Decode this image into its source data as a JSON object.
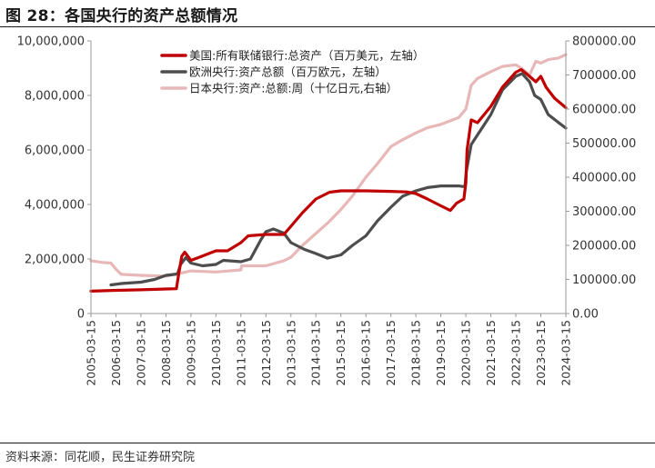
{
  "figure": {
    "title": "图 28：各国央行的资产总额情况",
    "source": "资料来源：同花顺，民生证券研究院"
  },
  "chart_data": {
    "type": "line",
    "y_left": {
      "range": [
        0,
        10000000
      ],
      "ticks": [
        0,
        2000000,
        4000000,
        6000000,
        8000000,
        10000000
      ],
      "tick_labels": [
        "0",
        "2,000,000",
        "4,000,000",
        "6,000,000",
        "8,000,000",
        "10,000,000"
      ]
    },
    "y_right": {
      "range": [
        0,
        800000
      ],
      "ticks": [
        0,
        100000,
        200000,
        300000,
        400000,
        500000,
        600000,
        700000,
        800000
      ],
      "tick_labels": [
        "0.00",
        "100000.00",
        "200000.00",
        "300000.00",
        "400000.00",
        "500000.00",
        "600000.00",
        "700000.00",
        "800000.00"
      ]
    },
    "x_axis": {
      "tick_labels": [
        "2005-03-15",
        "2006-03-15",
        "2007-03-15",
        "2008-03-15",
        "2009-03-15",
        "2010-03-15",
        "2011-03-15",
        "2012-03-15",
        "2013-03-15",
        "2014-03-15",
        "2015-03-15",
        "2016-03-15",
        "2017-03-15",
        "2018-03-15",
        "2019-03-15",
        "2020-03-15",
        "2021-03-15",
        "2022-03-15",
        "2023-03-15",
        "2024-03-15"
      ],
      "range": [
        "2005-03-15",
        "2024-03-15"
      ]
    },
    "legend": {
      "placement": "top-center"
    },
    "grid": false,
    "series": [
      {
        "name": "美国:所有联储银行:总资产（百万美元，左轴）",
        "axis": "left",
        "color": "#c00000",
        "points": [
          [
            "2005-03-15",
            820000
          ],
          [
            "2006-03-15",
            850000
          ],
          [
            "2007-03-15",
            870000
          ],
          [
            "2008-03-15",
            900000
          ],
          [
            "2008-08-15",
            910000
          ],
          [
            "2008-09-20",
            1500000
          ],
          [
            "2008-11-01",
            2100000
          ],
          [
            "2008-12-15",
            2250000
          ],
          [
            "2009-03-15",
            1950000
          ],
          [
            "2009-07-01",
            2050000
          ],
          [
            "2010-03-15",
            2300000
          ],
          [
            "2010-09-01",
            2300000
          ],
          [
            "2011-03-15",
            2600000
          ],
          [
            "2011-06-30",
            2850000
          ],
          [
            "2012-03-15",
            2900000
          ],
          [
            "2012-12-01",
            2900000
          ],
          [
            "2013-03-15",
            3200000
          ],
          [
            "2013-09-01",
            3700000
          ],
          [
            "2014-03-15",
            4200000
          ],
          [
            "2014-10-01",
            4450000
          ],
          [
            "2015-03-15",
            4500000
          ],
          [
            "2016-03-15",
            4500000
          ],
          [
            "2017-03-15",
            4480000
          ],
          [
            "2017-11-01",
            4460000
          ],
          [
            "2018-03-15",
            4400000
          ],
          [
            "2018-09-01",
            4200000
          ],
          [
            "2019-03-15",
            3950000
          ],
          [
            "2019-08-01",
            3780000
          ],
          [
            "2019-11-01",
            4050000
          ],
          [
            "2020-02-15",
            4200000
          ],
          [
            "2020-03-15",
            4800000
          ],
          [
            "2020-04-01",
            6000000
          ],
          [
            "2020-06-01",
            7100000
          ],
          [
            "2020-09-01",
            7000000
          ],
          [
            "2021-03-15",
            7600000
          ],
          [
            "2021-09-01",
            8300000
          ],
          [
            "2022-03-15",
            8850000
          ],
          [
            "2022-06-01",
            8950000
          ],
          [
            "2022-10-01",
            8700000
          ],
          [
            "2023-01-01",
            8500000
          ],
          [
            "2023-03-15",
            8700000
          ],
          [
            "2023-06-01",
            8300000
          ],
          [
            "2023-10-01",
            7900000
          ],
          [
            "2024-03-15",
            7550000
          ]
        ]
      },
      {
        "name": "欧洲央行:资产总额（百万欧元，左轴）",
        "axis": "left",
        "color": "#4d4d4d",
        "points": [
          [
            "2006-01-01",
            1050000
          ],
          [
            "2006-06-01",
            1100000
          ],
          [
            "2007-03-15",
            1150000
          ],
          [
            "2007-10-01",
            1250000
          ],
          [
            "2008-03-15",
            1400000
          ],
          [
            "2008-09-01",
            1450000
          ],
          [
            "2008-10-15",
            1800000
          ],
          [
            "2008-12-31",
            2050000
          ],
          [
            "2009-03-15",
            1850000
          ],
          [
            "2009-09-01",
            1750000
          ],
          [
            "2010-03-15",
            1800000
          ],
          [
            "2010-07-01",
            1950000
          ],
          [
            "2011-03-15",
            1900000
          ],
          [
            "2011-08-01",
            2000000
          ],
          [
            "2011-12-31",
            2700000
          ],
          [
            "2012-03-15",
            3000000
          ],
          [
            "2012-07-01",
            3100000
          ],
          [
            "2012-12-01",
            2950000
          ],
          [
            "2013-03-15",
            2600000
          ],
          [
            "2013-10-01",
            2350000
          ],
          [
            "2014-03-15",
            2200000
          ],
          [
            "2014-09-01",
            2030000
          ],
          [
            "2015-03-15",
            2150000
          ],
          [
            "2015-09-01",
            2500000
          ],
          [
            "2016-03-15",
            2850000
          ],
          [
            "2016-09-01",
            3400000
          ],
          [
            "2017-03-15",
            3900000
          ],
          [
            "2017-09-01",
            4300000
          ],
          [
            "2018-03-15",
            4500000
          ],
          [
            "2018-09-01",
            4620000
          ],
          [
            "2019-03-15",
            4680000
          ],
          [
            "2019-12-01",
            4680000
          ],
          [
            "2020-03-01",
            4650000
          ],
          [
            "2020-03-20",
            5200000
          ],
          [
            "2020-06-01",
            6200000
          ],
          [
            "2021-03-15",
            7300000
          ],
          [
            "2021-09-01",
            8200000
          ],
          [
            "2022-03-15",
            8700000
          ],
          [
            "2022-06-15",
            8800000
          ],
          [
            "2022-10-01",
            8500000
          ],
          [
            "2022-12-15",
            8000000
          ],
          [
            "2023-03-15",
            7850000
          ],
          [
            "2023-07-01",
            7300000
          ],
          [
            "2023-12-01",
            7000000
          ],
          [
            "2024-03-15",
            6800000
          ]
        ]
      },
      {
        "name": "日本央行:资产:总额:周（十亿日元,右轴）",
        "axis": "right",
        "color": "#e8b7b7",
        "points": [
          [
            "2005-03-15",
            155000
          ],
          [
            "2005-09-01",
            150000
          ],
          [
            "2006-01-01",
            148000
          ],
          [
            "2006-03-15",
            130000
          ],
          [
            "2006-06-01",
            115000
          ],
          [
            "2007-03-15",
            112000
          ],
          [
            "2008-03-15",
            110000
          ],
          [
            "2008-10-01",
            118000
          ],
          [
            "2009-03-15",
            125000
          ],
          [
            "2010-03-15",
            122000
          ],
          [
            "2011-03-15",
            128000
          ],
          [
            "2011-03-25",
            140000
          ],
          [
            "2012-03-15",
            140000
          ],
          [
            "2012-12-01",
            155000
          ],
          [
            "2013-03-15",
            165000
          ],
          [
            "2013-09-01",
            200000
          ],
          [
            "2014-03-15",
            235000
          ],
          [
            "2014-09-01",
            265000
          ],
          [
            "2015-03-15",
            305000
          ],
          [
            "2015-09-01",
            345000
          ],
          [
            "2016-03-15",
            400000
          ],
          [
            "2016-09-01",
            440000
          ],
          [
            "2017-03-15",
            490000
          ],
          [
            "2017-09-01",
            510000
          ],
          [
            "2018-03-15",
            530000
          ],
          [
            "2018-09-01",
            545000
          ],
          [
            "2019-03-15",
            555000
          ],
          [
            "2019-12-01",
            575000
          ],
          [
            "2020-03-15",
            600000
          ],
          [
            "2020-06-01",
            670000
          ],
          [
            "2020-09-01",
            690000
          ],
          [
            "2021-03-15",
            710000
          ],
          [
            "2021-09-01",
            725000
          ],
          [
            "2022-03-15",
            730000
          ],
          [
            "2022-06-01",
            720000
          ],
          [
            "2022-10-01",
            700000
          ],
          [
            "2023-01-01",
            740000
          ],
          [
            "2023-03-15",
            735000
          ],
          [
            "2023-07-01",
            745000
          ],
          [
            "2023-12-01",
            750000
          ],
          [
            "2024-03-15",
            760000
          ]
        ]
      }
    ]
  }
}
